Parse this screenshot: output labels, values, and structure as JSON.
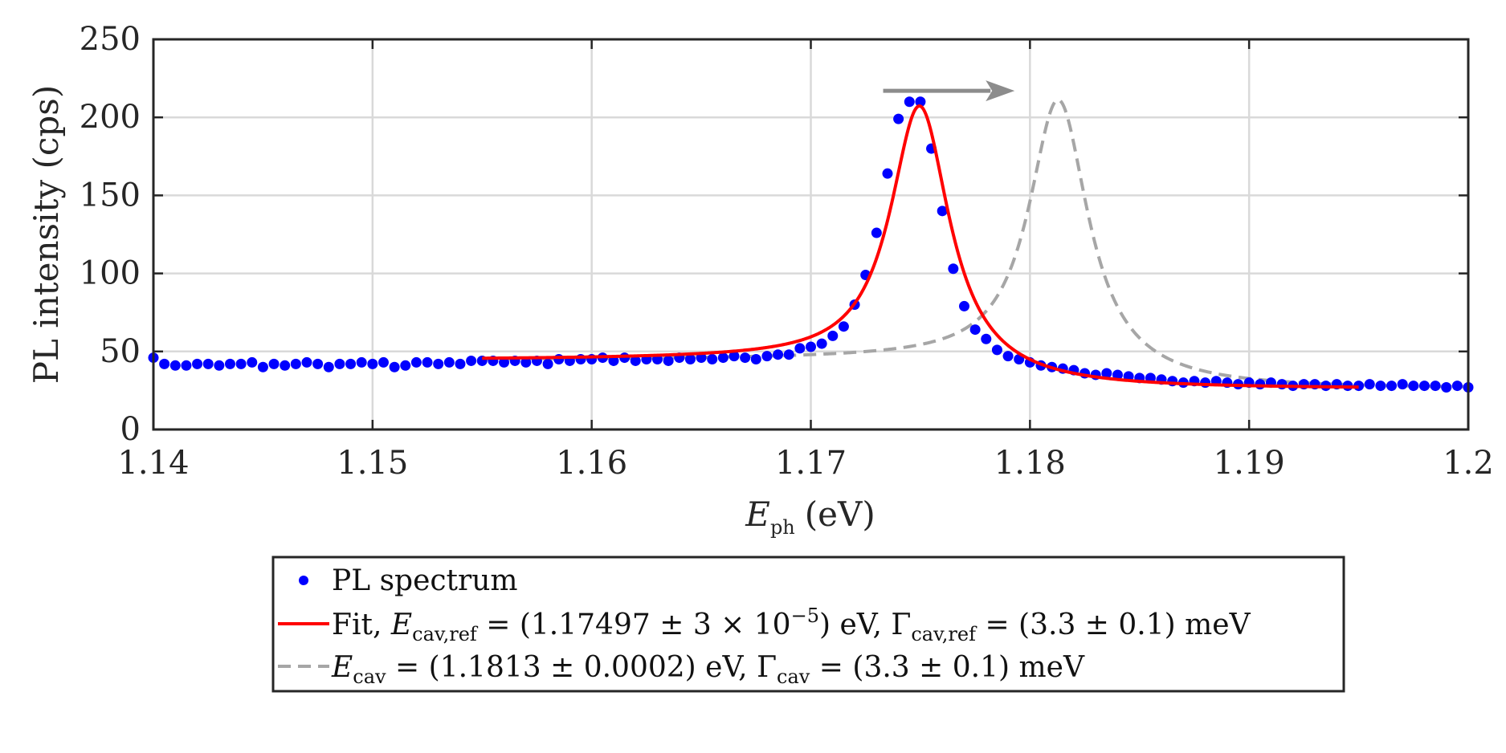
{
  "chart_data": {
    "type": "scatter",
    "xlabel": {
      "var": "E",
      "sub": "ph",
      "unit": "(eV)"
    },
    "ylabel": "PL intensity (cps)",
    "xlim": [
      1.14,
      1.2
    ],
    "ylim": [
      0,
      250
    ],
    "xticks": [
      "1.14",
      "1.15",
      "1.16",
      "1.17",
      "1.18",
      "1.19",
      "1.2"
    ],
    "yticks": [
      "0",
      "50",
      "100",
      "150",
      "200",
      "250"
    ],
    "grid": true,
    "annotation": {
      "type": "arrow",
      "from_x": 1.1733,
      "to_x": 1.1793,
      "y": 217
    },
    "series": [
      {
        "name": "PL spectrum",
        "style": "markers",
        "color": "#0000ff",
        "points": [
          [
            1.14,
            46
          ],
          [
            1.1405,
            42
          ],
          [
            1.141,
            41
          ],
          [
            1.1415,
            41
          ],
          [
            1.142,
            42
          ],
          [
            1.1425,
            42
          ],
          [
            1.143,
            41
          ],
          [
            1.1435,
            42
          ],
          [
            1.144,
            42
          ],
          [
            1.1445,
            43
          ],
          [
            1.145,
            40
          ],
          [
            1.1455,
            42
          ],
          [
            1.146,
            41
          ],
          [
            1.1465,
            42
          ],
          [
            1.147,
            43
          ],
          [
            1.1475,
            42
          ],
          [
            1.148,
            40
          ],
          [
            1.1485,
            42
          ],
          [
            1.149,
            42
          ],
          [
            1.1495,
            43
          ],
          [
            1.15,
            42
          ],
          [
            1.1505,
            43
          ],
          [
            1.151,
            40
          ],
          [
            1.1515,
            41
          ],
          [
            1.152,
            43
          ],
          [
            1.1525,
            43
          ],
          [
            1.153,
            42
          ],
          [
            1.1535,
            43
          ],
          [
            1.154,
            42
          ],
          [
            1.1545,
            44
          ],
          [
            1.155,
            44
          ],
          [
            1.1555,
            44
          ],
          [
            1.156,
            43
          ],
          [
            1.1565,
            44
          ],
          [
            1.157,
            43
          ],
          [
            1.1575,
            44
          ],
          [
            1.158,
            42
          ],
          [
            1.1585,
            45
          ],
          [
            1.159,
            44
          ],
          [
            1.1595,
            45
          ],
          [
            1.16,
            45
          ],
          [
            1.1605,
            46
          ],
          [
            1.161,
            44
          ],
          [
            1.1615,
            46
          ],
          [
            1.162,
            44
          ],
          [
            1.1625,
            45
          ],
          [
            1.163,
            45
          ],
          [
            1.1635,
            44
          ],
          [
            1.164,
            46
          ],
          [
            1.1645,
            45
          ],
          [
            1.165,
            46
          ],
          [
            1.1655,
            45
          ],
          [
            1.166,
            46
          ],
          [
            1.1665,
            47
          ],
          [
            1.167,
            46
          ],
          [
            1.1675,
            45
          ],
          [
            1.168,
            47
          ],
          [
            1.1685,
            48
          ],
          [
            1.169,
            48
          ],
          [
            1.1695,
            52
          ],
          [
            1.17,
            53
          ],
          [
            1.1705,
            55
          ],
          [
            1.171,
            60
          ],
          [
            1.1715,
            66
          ],
          [
            1.172,
            80
          ],
          [
            1.1725,
            99
          ],
          [
            1.173,
            126
          ],
          [
            1.1735,
            164
          ],
          [
            1.174,
            199
          ],
          [
            1.1745,
            210
          ],
          [
            1.175,
            210
          ],
          [
            1.1755,
            180
          ],
          [
            1.176,
            140
          ],
          [
            1.1765,
            103
          ],
          [
            1.177,
            79
          ],
          [
            1.1775,
            64
          ],
          [
            1.178,
            58
          ],
          [
            1.1785,
            51
          ],
          [
            1.179,
            47
          ],
          [
            1.1795,
            45
          ],
          [
            1.18,
            43
          ],
          [
            1.1805,
            41
          ],
          [
            1.181,
            40
          ],
          [
            1.1815,
            39
          ],
          [
            1.182,
            38
          ],
          [
            1.1825,
            36
          ],
          [
            1.183,
            35
          ],
          [
            1.1835,
            36
          ],
          [
            1.184,
            35
          ],
          [
            1.1845,
            34
          ],
          [
            1.185,
            33
          ],
          [
            1.1855,
            33
          ],
          [
            1.186,
            32
          ],
          [
            1.1865,
            31
          ],
          [
            1.187,
            30
          ],
          [
            1.1875,
            31
          ],
          [
            1.188,
            30
          ],
          [
            1.1885,
            31
          ],
          [
            1.189,
            30
          ],
          [
            1.1895,
            29
          ],
          [
            1.19,
            30
          ],
          [
            1.1905,
            29
          ],
          [
            1.191,
            30
          ],
          [
            1.1915,
            29
          ],
          [
            1.192,
            28
          ],
          [
            1.1925,
            29
          ],
          [
            1.193,
            29
          ],
          [
            1.1935,
            28
          ],
          [
            1.194,
            29
          ],
          [
            1.1945,
            28
          ],
          [
            1.195,
            28
          ],
          [
            1.1955,
            29
          ],
          [
            1.196,
            28
          ],
          [
            1.1965,
            28
          ],
          [
            1.197,
            29
          ],
          [
            1.1975,
            28
          ],
          [
            1.198,
            28
          ],
          [
            1.1985,
            28
          ],
          [
            1.199,
            27
          ],
          [
            1.1995,
            28
          ],
          [
            1.2,
            27
          ]
        ]
      },
      {
        "name": "Fit, E_cav,ref = (1.17497 ± 3 × 10^−5) eV, Γ_cav,ref = (3.3 ± 0.1) meV",
        "style": "line",
        "color": "#ff0000",
        "model": {
          "kind": "lorentzian",
          "x_range": [
            1.155,
            1.195
          ],
          "center": 1.17497,
          "fwhm": 0.0033,
          "amplitude": 172,
          "offset_a": 44.5,
          "offset_b": 26,
          "offset_center": 1.175,
          "offset_width": 0.0025
        }
      },
      {
        "name": "E_cav = (1.1813 ± 0.0002) eV, Γ_cav = (3.3 ± 0.1) meV",
        "style": "dashed",
        "color": "#a6a6a6",
        "model": {
          "kind": "lorentzian",
          "x_range": [
            1.155,
            1.2
          ],
          "center": 1.1813,
          "fwhm": 0.0033,
          "amplitude": 176,
          "offset_a": 44.5,
          "offset_b": 26,
          "offset_center": 1.1813,
          "offset_width": 0.0025
        }
      }
    ],
    "legend": {
      "placement": "bottom-center",
      "entries": [
        {
          "text": "PL spectrum"
        },
        {
          "prefix": "Fit, ",
          "e_var": "E",
          "e_sub": "cav,ref",
          "e_value": " = (1.17497 ± 3 × 10",
          "e_exp": "−5",
          "e_unit": ") eV, ",
          "g_var": "Γ",
          "g_sub": "cav,ref",
          "g_value": " = (3.3 ± 0.1) meV"
        },
        {
          "e_var": "E",
          "e_sub": "cav",
          "e_value": " = (1.1813 ± 0.0002) eV, ",
          "g_var": "Γ",
          "g_sub": "cav",
          "g_value": " = (3.3 ± 0.1) meV"
        }
      ]
    }
  }
}
